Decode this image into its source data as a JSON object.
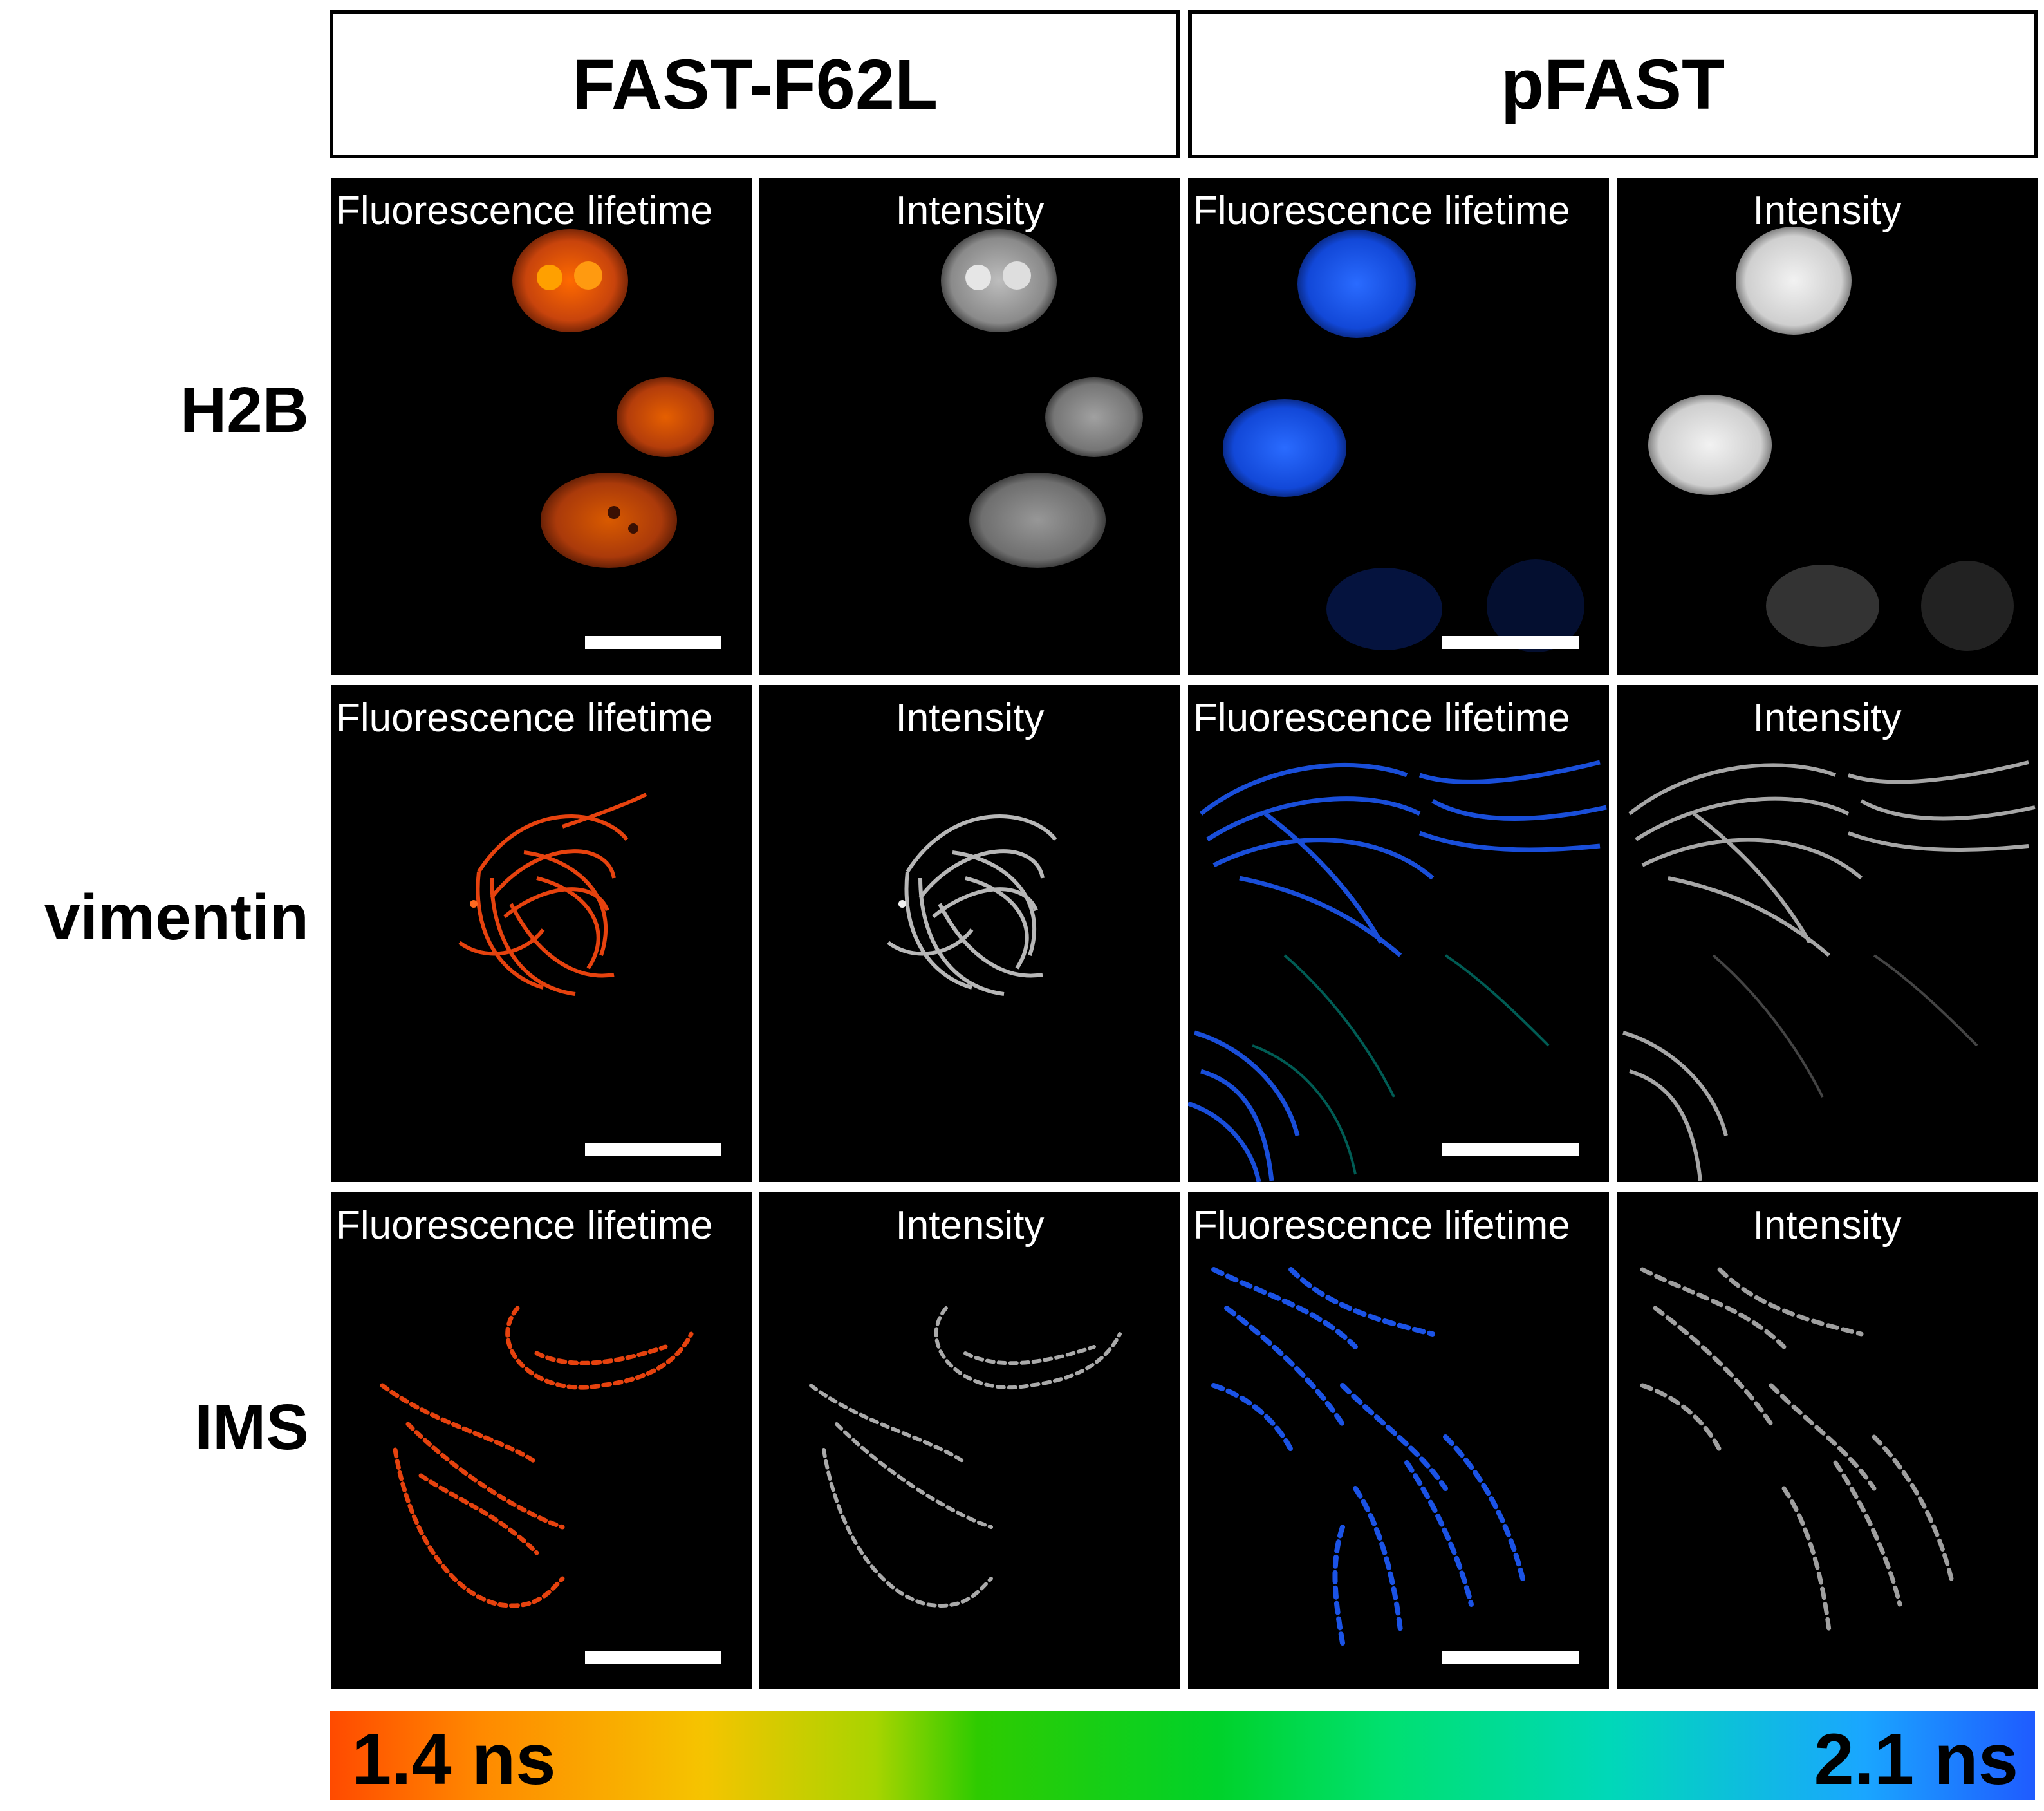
{
  "headers": {
    "left": "FAST-F62L",
    "right": "pFAST"
  },
  "row_labels": {
    "h2b": "H2B",
    "vimentin": "vimentin",
    "ims": "IMS"
  },
  "panel_labels": {
    "lifetime": "Fluorescence lifetime",
    "intensity": "Intensity"
  },
  "colorbar": {
    "min_label": "1.4 ns",
    "max_label": "2.1 ns"
  },
  "colors": {
    "fast_lifetime": "#e0501a",
    "pfast_lifetime": "#1e5cff",
    "intensity": "#cfcfcf",
    "background": "#000000"
  }
}
